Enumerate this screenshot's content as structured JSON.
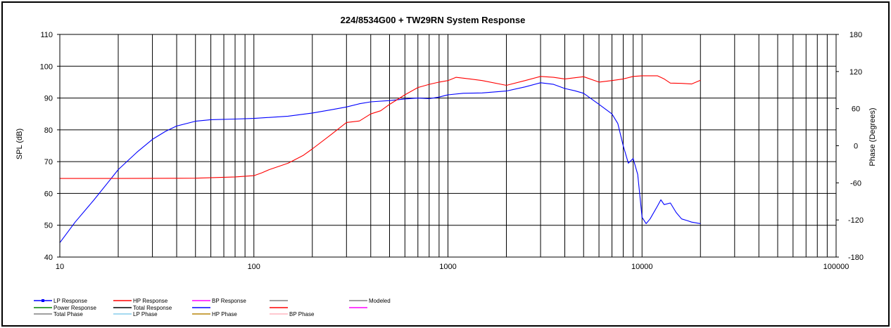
{
  "chart_data": {
    "type": "line",
    "title": "224/8534G00  + TW29RN     System Response",
    "xlabel": "",
    "ylabel": "SPL (dB)",
    "y2label": "Phase (Degrees)",
    "x_scale": "log",
    "xlim": [
      10,
      100000
    ],
    "ylim": [
      40,
      110
    ],
    "y2lim": [
      -180,
      180
    ],
    "grid": true,
    "x_tick_labels": [
      "10",
      "100",
      "1000",
      "10000",
      "100000"
    ],
    "y_tick_labels": [
      "40",
      "50",
      "60",
      "70",
      "80",
      "90",
      "100",
      "110"
    ],
    "y2_tick_labels": [
      "-180",
      "-120",
      "-60",
      "0",
      "60",
      "120",
      "180"
    ],
    "series": [
      {
        "name": "LP Response",
        "color": "#0000ff",
        "points": [
          [
            10,
            44.5
          ],
          [
            12,
            51
          ],
          [
            15,
            58
          ],
          [
            18,
            64
          ],
          [
            20,
            67.5
          ],
          [
            25,
            73
          ],
          [
            30,
            77
          ],
          [
            35,
            79.5
          ],
          [
            40,
            81.2
          ],
          [
            50,
            82.7
          ],
          [
            60,
            83.2
          ],
          [
            80,
            83.4
          ],
          [
            100,
            83.6
          ],
          [
            150,
            84.3
          ],
          [
            200,
            85.3
          ],
          [
            250,
            86.3
          ],
          [
            300,
            87.2
          ],
          [
            350,
            88.2
          ],
          [
            400,
            88.8
          ],
          [
            500,
            89.2
          ],
          [
            600,
            89.7
          ],
          [
            700,
            90
          ],
          [
            800,
            89.8
          ],
          [
            900,
            90.3
          ],
          [
            1000,
            91
          ],
          [
            1200,
            91.5
          ],
          [
            1500,
            91.6
          ],
          [
            2000,
            92.2
          ],
          [
            2500,
            93.5
          ],
          [
            3000,
            94.8
          ],
          [
            3500,
            94.3
          ],
          [
            4000,
            93
          ],
          [
            4500,
            92.3
          ],
          [
            5000,
            91.5
          ],
          [
            6000,
            88
          ],
          [
            7000,
            85
          ],
          [
            7500,
            82
          ],
          [
            8000,
            75
          ],
          [
            8500,
            69.5
          ],
          [
            9000,
            71
          ],
          [
            9500,
            66
          ],
          [
            10000,
            52.5
          ],
          [
            10500,
            50.5
          ],
          [
            11000,
            52
          ],
          [
            12000,
            56
          ],
          [
            12500,
            58
          ],
          [
            13000,
            56.5
          ],
          [
            14000,
            57
          ],
          [
            15000,
            54
          ],
          [
            16000,
            52
          ],
          [
            17000,
            51.5
          ],
          [
            18000,
            51
          ],
          [
            20000,
            50.5
          ]
        ]
      },
      {
        "name": "HP Response",
        "color": "#ff0000",
        "points": [
          [
            10,
            64.7
          ],
          [
            20,
            64.7
          ],
          [
            50,
            64.8
          ],
          [
            80,
            65.2
          ],
          [
            100,
            65.6
          ],
          [
            110,
            66.5
          ],
          [
            120,
            67.5
          ],
          [
            150,
            69.5
          ],
          [
            180,
            72
          ],
          [
            200,
            74
          ],
          [
            250,
            78.5
          ],
          [
            300,
            82.3
          ],
          [
            350,
            82.8
          ],
          [
            400,
            85
          ],
          [
            450,
            86
          ],
          [
            500,
            88
          ],
          [
            600,
            91
          ],
          [
            700,
            93.3
          ],
          [
            800,
            94.3
          ],
          [
            900,
            95
          ],
          [
            1000,
            95.5
          ],
          [
            1100,
            96.5
          ],
          [
            1300,
            96
          ],
          [
            1500,
            95.5
          ],
          [
            2000,
            94
          ],
          [
            2500,
            95.5
          ],
          [
            3000,
            96.8
          ],
          [
            3500,
            96.5
          ],
          [
            4000,
            96
          ],
          [
            5000,
            96.7
          ],
          [
            6000,
            95
          ],
          [
            7000,
            95.5
          ],
          [
            8000,
            96
          ],
          [
            9000,
            96.8
          ],
          [
            10000,
            97
          ],
          [
            12000,
            97
          ],
          [
            13000,
            96
          ],
          [
            14000,
            94.7
          ],
          [
            16000,
            94.6
          ],
          [
            18000,
            94.4
          ],
          [
            20000,
            95.6
          ]
        ]
      }
    ],
    "legend": {
      "placement": "bottom",
      "entries": [
        {
          "label": "LP Response",
          "color": "#0000ff",
          "marker": true
        },
        {
          "label": "HP Response",
          "color": "#ff0000",
          "marker": false
        },
        {
          "label": "BP Response",
          "color": "#ff00ff",
          "marker": false
        },
        {
          "label": "",
          "color": "#808080",
          "marker": false
        },
        {
          "label": "Modeled",
          "color": "#808080",
          "marker": false
        },
        {
          "label": "Power Response",
          "color": "#008000",
          "marker": false
        },
        {
          "label": "Total Response",
          "color": "#000000",
          "marker": false
        },
        {
          "label": "",
          "color": "#0000ff",
          "marker": false
        },
        {
          "label": "",
          "color": "#ff0000",
          "marker": false
        },
        {
          "label": "",
          "color": "#ff00ff",
          "marker": false
        },
        {
          "label": "Total Phase",
          "color": "#808080",
          "marker": false
        },
        {
          "label": "LP Phase",
          "color": "#87ceeb",
          "marker": false
        },
        {
          "label": "HP Phase",
          "color": "#b8860b",
          "marker": false
        },
        {
          "label": "BP Phase",
          "color": "#ffb6c1",
          "marker": false
        }
      ]
    }
  }
}
